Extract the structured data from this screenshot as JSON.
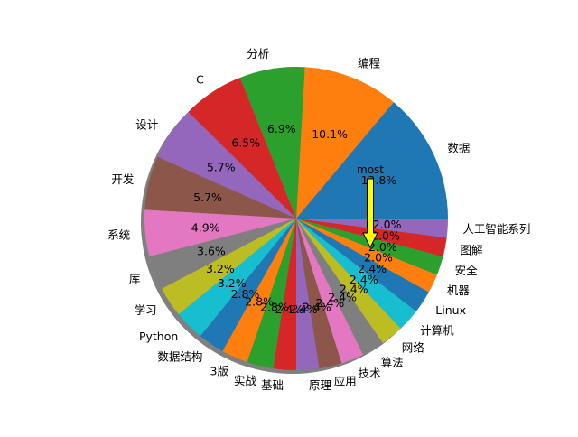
{
  "chart_data": {
    "type": "pie",
    "title": "",
    "shadow": true,
    "start_angle_deg": 0,
    "direction": "counterclockwise",
    "annotation": {
      "text": "most",
      "points_to_category": "数据",
      "arrow_color": "#ffff00"
    },
    "slices": [
      {
        "label": "数据",
        "percent": 13.8,
        "color": "#1f77b4",
        "pct_label": "13.8%"
      },
      {
        "label": "编程",
        "percent": 10.1,
        "color": "#ff7f0e",
        "pct_label": "10.1%"
      },
      {
        "label": "分析",
        "percent": 6.9,
        "color": "#2ca02c",
        "pct_label": "6.9%"
      },
      {
        "label": "C",
        "percent": 6.5,
        "color": "#d62728",
        "pct_label": "6.5%"
      },
      {
        "label": "设计",
        "percent": 5.7,
        "color": "#9467bd",
        "pct_label": "5.7%"
      },
      {
        "label": "开发",
        "percent": 5.7,
        "color": "#8c564b",
        "pct_label": "5.7%"
      },
      {
        "label": "系统",
        "percent": 4.9,
        "color": "#e377c2",
        "pct_label": "4.9%"
      },
      {
        "label": "库",
        "percent": 3.6,
        "color": "#7f7f7f",
        "pct_label": "3.6%"
      },
      {
        "label": "学习",
        "percent": 3.2,
        "color": "#bcbd22",
        "pct_label": "3.2%"
      },
      {
        "label": "Python",
        "percent": 3.2,
        "color": "#17becf",
        "pct_label": "3.2%"
      },
      {
        "label": "数据结构",
        "percent": 2.8,
        "color": "#1f77b4",
        "pct_label": "2.8%"
      },
      {
        "label": "3版",
        "percent": 2.8,
        "color": "#ff7f0e",
        "pct_label": "2.8%"
      },
      {
        "label": "实战",
        "percent": 2.8,
        "color": "#2ca02c",
        "pct_label": "2.8%"
      },
      {
        "label": "基础",
        "percent": 2.4,
        "color": "#d62728",
        "pct_label": "2.4%"
      },
      {
        "label": "原理",
        "percent": 2.4,
        "color": "#9467bd",
        "pct_label": "2.4%"
      },
      {
        "label": "应用",
        "percent": 2.4,
        "color": "#8c564b",
        "pct_label": "2.4%"
      },
      {
        "label": "技术",
        "percent": 2.4,
        "color": "#e377c2",
        "pct_label": "2.4%"
      },
      {
        "label": "算法",
        "percent": 2.4,
        "color": "#7f7f7f",
        "pct_label": "2.4%"
      },
      {
        "label": "网络",
        "percent": 2.4,
        "color": "#bcbd22",
        "pct_label": "2.4%"
      },
      {
        "label": "计算机",
        "percent": 2.4,
        "color": "#17becf",
        "pct_label": "2.4%"
      },
      {
        "label": "Linux",
        "percent": 2.4,
        "color": "#1f77b4",
        "pct_label": "2.4%"
      },
      {
        "label": "机器",
        "percent": 2.0,
        "color": "#ff7f0e",
        "pct_label": "2.0%"
      },
      {
        "label": "安全",
        "percent": 2.0,
        "color": "#2ca02c",
        "pct_label": "2.0%"
      },
      {
        "label": "图解",
        "percent": 2.0,
        "color": "#d62728",
        "pct_label": "2.0%"
      },
      {
        "label": "人工智能系列",
        "percent": 2.0,
        "color": "#9467bd",
        "pct_label": "2.0%"
      }
    ]
  }
}
